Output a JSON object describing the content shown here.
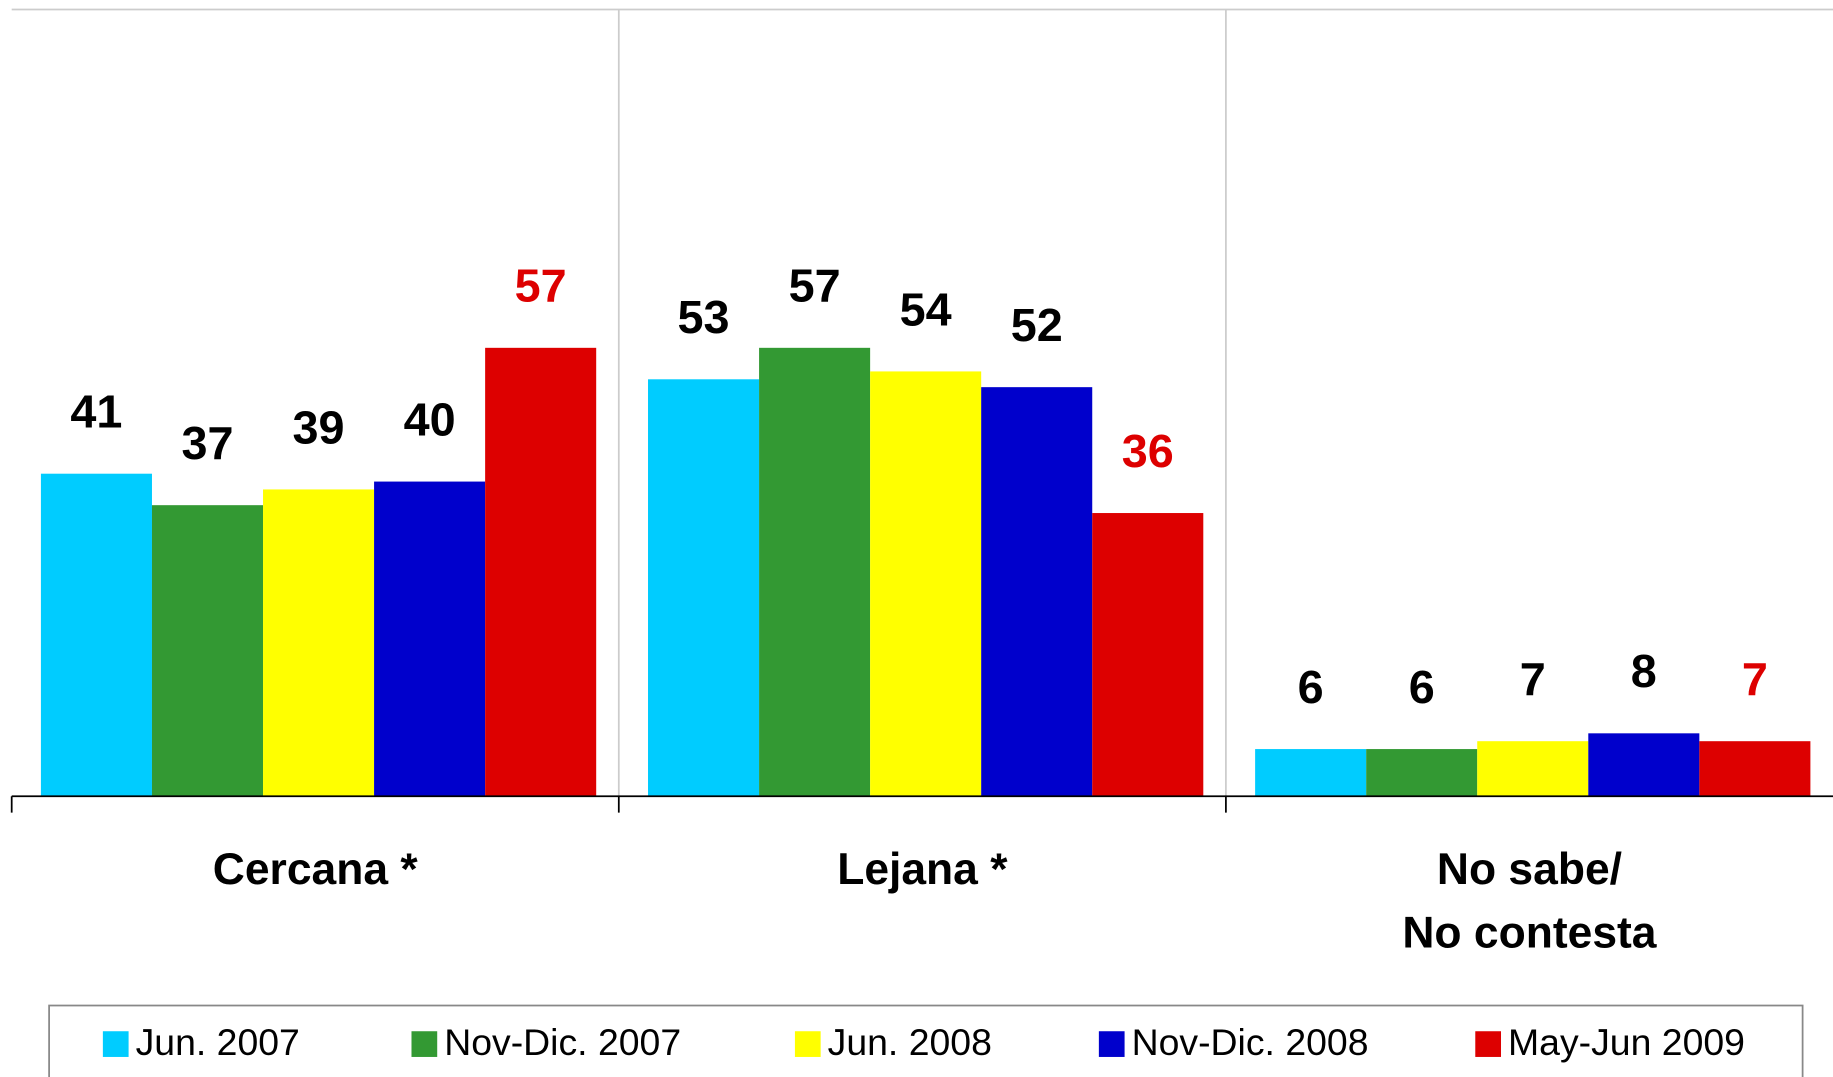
{
  "chart_data": {
    "type": "bar",
    "categories": [
      "Cercana *",
      "Lejana *",
      "No sabe/\nNo contesta"
    ],
    "series": [
      {
        "name": "Jun. 2007",
        "color": "#00ccff",
        "label_color": "#000000",
        "values": [
          41,
          53,
          6
        ]
      },
      {
        "name": "Nov-Dic. 2007",
        "color": "#339933",
        "label_color": "#000000",
        "values": [
          37,
          57,
          6
        ]
      },
      {
        "name": "Jun. 2008",
        "color": "#ffff00",
        "label_color": "#000000",
        "values": [
          39,
          54,
          7
        ]
      },
      {
        "name": "Nov-Dic. 2008",
        "color": "#0000cc",
        "label_color": "#000000",
        "values": [
          40,
          52,
          8
        ]
      },
      {
        "name": "May-Jun 2009",
        "color": "#dd0000",
        "label_color": "#dd0000",
        "values": [
          57,
          36,
          7
        ]
      }
    ],
    "ylim": [
      0,
      100
    ],
    "legend": "bottom"
  }
}
